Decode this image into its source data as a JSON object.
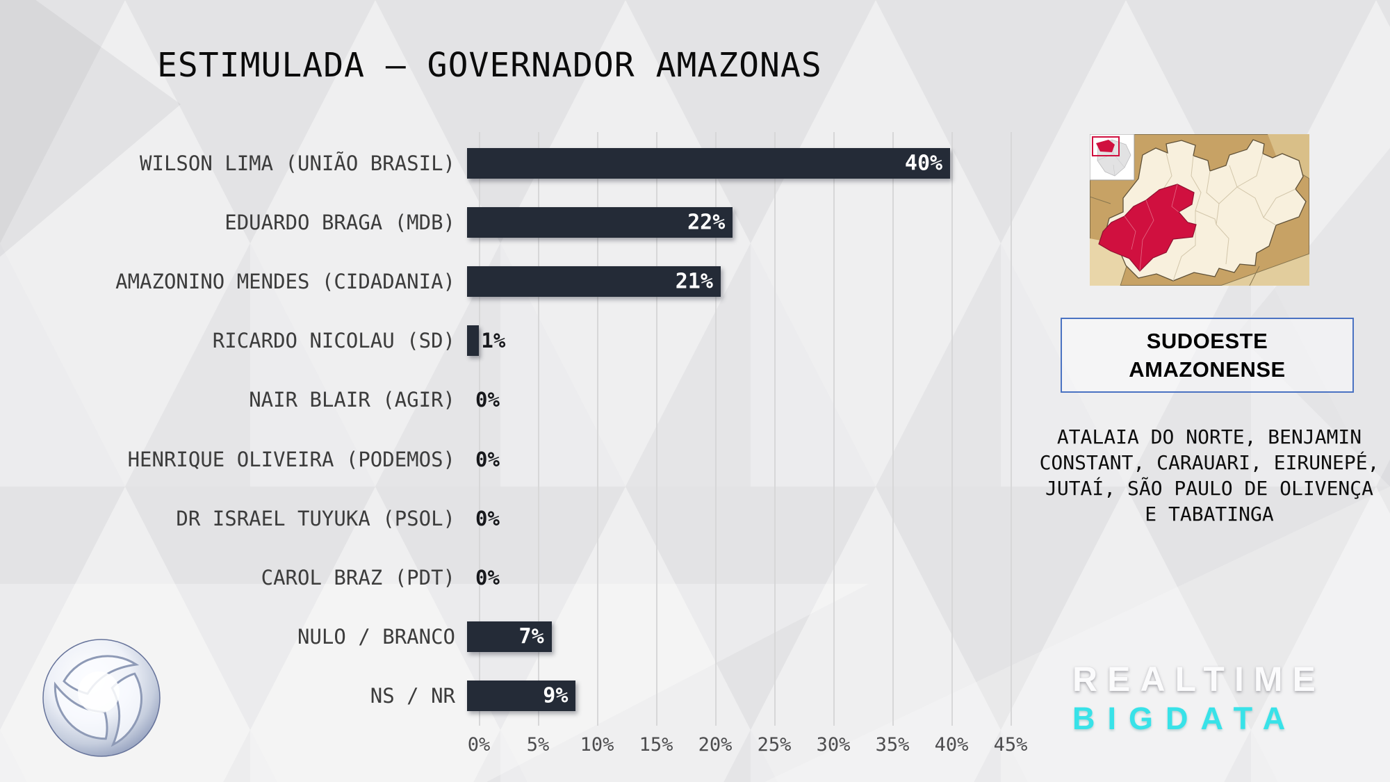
{
  "chart_data": {
    "type": "bar",
    "orientation": "horizontal",
    "title": "ESTIMULADA — GOVERNADOR AMAZONAS",
    "categories": [
      "WILSON LIMA (UNIÃO BRASIL)",
      "EDUARDO BRAGA (MDB)",
      "AMAZONINO MENDES (CIDADANIA)",
      "RICARDO NICOLAU (SD)",
      "NAIR BLAIR (AGIR)",
      "HENRIQUE OLIVEIRA (PODEMOS)",
      "DR ISRAEL TUYUKA (PSOL)",
      "CAROL BRAZ (PDT)",
      "NULO / BRANCO",
      "NS / NR"
    ],
    "values": [
      40,
      22,
      21,
      1,
      0,
      0,
      0,
      0,
      7,
      9
    ],
    "value_labels": [
      "40%",
      "22%",
      "21%",
      "1%",
      "0%",
      "0%",
      "0%",
      "0%",
      "7%",
      "9%"
    ],
    "xlabel": "",
    "ylabel": "",
    "xlim": [
      0,
      45
    ],
    "x_ticks": [
      "0%",
      "5%",
      "10%",
      "15%",
      "20%",
      "25%",
      "30%",
      "35%",
      "40%",
      "45%"
    ],
    "grid": true,
    "legend_position": "none",
    "bar_color": "#242B37",
    "in_bar_value_color": "#FFFFFF",
    "out_bar_value_color": "#17181C"
  },
  "region_panel": {
    "name_lines": [
      "SUDOESTE",
      "AMAZONENSE"
    ],
    "municipalities_lines": [
      "ATALAIA DO NORTE, BENJAMIN",
      "CONSTANT, CARAUARI, EIRUNEPÉ,",
      "JUTAÍ, SÃO PAULO DE OLIVENÇA",
      "E TABATINGA"
    ],
    "map_colors": {
      "highlight": "#D0103F",
      "state_fill": "#F8F0DD",
      "surround_fill": "#C7A265",
      "box_border": "#4A72C2"
    }
  },
  "branding": {
    "realtime_label": "REALTIME",
    "bigdata_label": "BIGDATA",
    "bigdata_color": "#38E2E8",
    "network_icon": "record-tv-sphere-logo"
  }
}
